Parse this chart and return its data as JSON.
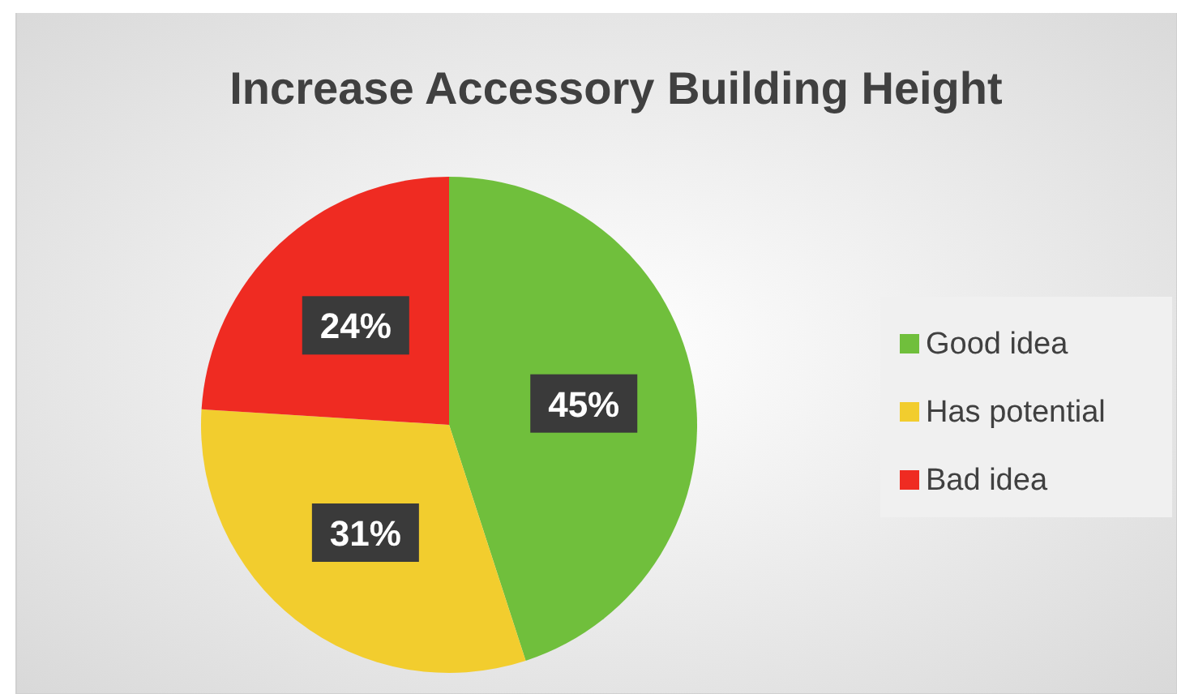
{
  "chart_data": {
    "type": "pie",
    "title": "Increase Accessory Building Height",
    "categories": [
      "Good idea",
      "Has potential",
      "Bad idea"
    ],
    "values": [
      45,
      31,
      24
    ],
    "value_labels": [
      "45%",
      "31%",
      "24%"
    ],
    "colors": [
      "#70bf3c",
      "#f2cd2e",
      "#ef2b22"
    ],
    "legend": "right"
  }
}
